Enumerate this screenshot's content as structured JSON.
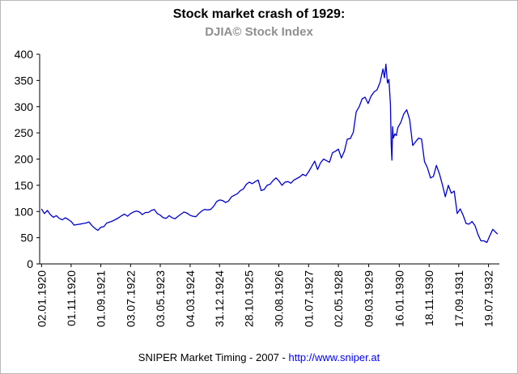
{
  "chart_data": {
    "type": "line",
    "title": "Stock market crash of 1929:",
    "subtitle": "DJIA© Stock Index",
    "line_color": "#0000cc",
    "axis_color": "#000000",
    "grid": false,
    "legend": "none",
    "xlim": [
      1919.95,
      1932.85
    ],
    "ylim": [
      0,
      400
    ],
    "y_ticks": [
      0,
      50,
      100,
      150,
      200,
      250,
      300,
      350,
      400
    ],
    "x_ticks": [
      {
        "label": "02.01.1920",
        "x": 1920.003
      },
      {
        "label": "01.11.1920",
        "x": 1920.833
      },
      {
        "label": "01.09.1921",
        "x": 1921.666
      },
      {
        "label": "03.07.1922",
        "x": 1922.501
      },
      {
        "label": "03.05.1923",
        "x": 1923.334
      },
      {
        "label": "04.03.1924",
        "x": 1924.172
      },
      {
        "label": "31.12.1924",
        "x": 1924.997
      },
      {
        "label": "28.10.1925",
        "x": 1925.822
      },
      {
        "label": "30.08.1926",
        "x": 1926.66
      },
      {
        "label": "01.07.1927",
        "x": 1927.496
      },
      {
        "label": "02.05.1928",
        "x": 1928.333
      },
      {
        "label": "09.03.1929",
        "x": 1929.184
      },
      {
        "label": "16.01.1930",
        "x": 1930.041
      },
      {
        "label": "18.11.1930",
        "x": 1930.879
      },
      {
        "label": "17.09.1931",
        "x": 1931.71
      },
      {
        "label": "19.07.1932",
        "x": 1932.546
      }
    ],
    "series": [
      {
        "name": "DJIA",
        "points": [
          [
            1920.0,
            105
          ],
          [
            1920.083,
            96
          ],
          [
            1920.167,
            102
          ],
          [
            1920.25,
            94
          ],
          [
            1920.333,
            89
          ],
          [
            1920.417,
            92
          ],
          [
            1920.5,
            87
          ],
          [
            1920.583,
            84
          ],
          [
            1920.667,
            88
          ],
          [
            1920.75,
            85
          ],
          [
            1920.833,
            81
          ],
          [
            1920.917,
            74
          ],
          [
            1921.0,
            75
          ],
          [
            1921.083,
            76
          ],
          [
            1921.167,
            77
          ],
          [
            1921.25,
            78
          ],
          [
            1921.333,
            80
          ],
          [
            1921.417,
            73
          ],
          [
            1921.5,
            68
          ],
          [
            1921.583,
            64
          ],
          [
            1921.667,
            70
          ],
          [
            1921.75,
            71
          ],
          [
            1921.833,
            78
          ],
          [
            1921.917,
            80
          ],
          [
            1922.0,
            82
          ],
          [
            1922.083,
            85
          ],
          [
            1922.167,
            88
          ],
          [
            1922.25,
            92
          ],
          [
            1922.333,
            95
          ],
          [
            1922.417,
            91
          ],
          [
            1922.5,
            96
          ],
          [
            1922.583,
            99
          ],
          [
            1922.667,
            101
          ],
          [
            1922.75,
            99
          ],
          [
            1922.833,
            94
          ],
          [
            1922.917,
            98
          ],
          [
            1923.0,
            98
          ],
          [
            1923.083,
            102
          ],
          [
            1923.167,
            104
          ],
          [
            1923.25,
            96
          ],
          [
            1923.333,
            93
          ],
          [
            1923.417,
            88
          ],
          [
            1923.5,
            87
          ],
          [
            1923.583,
            92
          ],
          [
            1923.667,
            88
          ],
          [
            1923.75,
            86
          ],
          [
            1923.833,
            91
          ],
          [
            1923.917,
            95
          ],
          [
            1924.0,
            99
          ],
          [
            1924.083,
            97
          ],
          [
            1924.167,
            93
          ],
          [
            1924.25,
            91
          ],
          [
            1924.333,
            90
          ],
          [
            1924.417,
            96
          ],
          [
            1924.5,
            101
          ],
          [
            1924.583,
            104
          ],
          [
            1924.667,
            103
          ],
          [
            1924.75,
            104
          ],
          [
            1924.833,
            110
          ],
          [
            1924.917,
            119
          ],
          [
            1925.0,
            122
          ],
          [
            1925.083,
            121
          ],
          [
            1925.167,
            117
          ],
          [
            1925.25,
            120
          ],
          [
            1925.333,
            128
          ],
          [
            1925.417,
            131
          ],
          [
            1925.5,
            134
          ],
          [
            1925.583,
            140
          ],
          [
            1925.667,
            143
          ],
          [
            1925.75,
            152
          ],
          [
            1925.833,
            156
          ],
          [
            1925.917,
            153
          ],
          [
            1926.0,
            157
          ],
          [
            1926.083,
            160
          ],
          [
            1926.167,
            140
          ],
          [
            1926.25,
            142
          ],
          [
            1926.333,
            150
          ],
          [
            1926.417,
            152
          ],
          [
            1926.5,
            159
          ],
          [
            1926.583,
            164
          ],
          [
            1926.667,
            158
          ],
          [
            1926.75,
            150
          ],
          [
            1926.833,
            156
          ],
          [
            1926.917,
            157
          ],
          [
            1927.0,
            154
          ],
          [
            1927.083,
            160
          ],
          [
            1927.167,
            163
          ],
          [
            1927.25,
            166
          ],
          [
            1927.333,
            171
          ],
          [
            1927.417,
            168
          ],
          [
            1927.5,
            176
          ],
          [
            1927.583,
            186
          ],
          [
            1927.667,
            196
          ],
          [
            1927.75,
            180
          ],
          [
            1927.833,
            193
          ],
          [
            1927.917,
            200
          ],
          [
            1928.0,
            197
          ],
          [
            1928.083,
            194
          ],
          [
            1928.167,
            212
          ],
          [
            1928.25,
            215
          ],
          [
            1928.333,
            219
          ],
          [
            1928.417,
            202
          ],
          [
            1928.5,
            215
          ],
          [
            1928.583,
            238
          ],
          [
            1928.667,
            239
          ],
          [
            1928.75,
            251
          ],
          [
            1928.833,
            290
          ],
          [
            1928.917,
            300
          ],
          [
            1929.0,
            315
          ],
          [
            1929.083,
            318
          ],
          [
            1929.167,
            306
          ],
          [
            1929.25,
            320
          ],
          [
            1929.333,
            328
          ],
          [
            1929.417,
            332
          ],
          [
            1929.5,
            346
          ],
          [
            1929.583,
            372
          ],
          [
            1929.625,
            355
          ],
          [
            1929.667,
            381
          ],
          [
            1929.708,
            345
          ],
          [
            1929.75,
            352
          ],
          [
            1929.792,
            305
          ],
          [
            1929.813,
            230
          ],
          [
            1929.833,
            198
          ],
          [
            1929.854,
            262
          ],
          [
            1929.875,
            240
          ],
          [
            1929.917,
            248
          ],
          [
            1929.958,
            245
          ],
          [
            1930.0,
            260
          ],
          [
            1930.083,
            270
          ],
          [
            1930.167,
            286
          ],
          [
            1930.25,
            294
          ],
          [
            1930.333,
            275
          ],
          [
            1930.417,
            226
          ],
          [
            1930.5,
            233
          ],
          [
            1930.583,
            240
          ],
          [
            1930.667,
            238
          ],
          [
            1930.75,
            195
          ],
          [
            1930.833,
            183
          ],
          [
            1930.917,
            164
          ],
          [
            1931.0,
            167
          ],
          [
            1931.083,
            188
          ],
          [
            1931.167,
            172
          ],
          [
            1931.25,
            151
          ],
          [
            1931.333,
            128
          ],
          [
            1931.417,
            150
          ],
          [
            1931.5,
            135
          ],
          [
            1931.583,
            139
          ],
          [
            1931.667,
            96
          ],
          [
            1931.75,
            105
          ],
          [
            1931.833,
            93
          ],
          [
            1931.917,
            77
          ],
          [
            1932.0,
            76
          ],
          [
            1932.083,
            81
          ],
          [
            1932.167,
            73
          ],
          [
            1932.25,
            56
          ],
          [
            1932.333,
            44
          ],
          [
            1932.417,
            44
          ],
          [
            1932.5,
            41
          ],
          [
            1932.583,
            54
          ],
          [
            1932.667,
            66
          ],
          [
            1932.75,
            60
          ],
          [
            1932.8,
            57
          ]
        ]
      }
    ]
  },
  "footer": {
    "text": "SNIPER Market Timing - 2007 - ",
    "link_text": "http://www.sniper.at",
    "link_color": "#0000ee"
  }
}
